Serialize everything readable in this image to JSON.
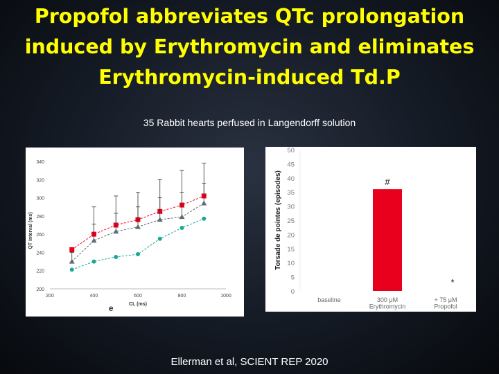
{
  "slide": {
    "title_lines": [
      "Propofol abbreviates QTc prolongation",
      "induced by Erythromycin and eliminates",
      "Erythromycin-induced Td.P"
    ],
    "subtitle": "35 Rabbit hearts perfused in Langendorff solution",
    "citation": "Ellerman et al, SCIENT REP 2020"
  },
  "chart_data": [
    {
      "type": "line",
      "xlabel": "CL (ms)",
      "ylabel": "QT interval (ms)",
      "xlim": [
        200,
        1000
      ],
      "ylim": [
        200,
        340
      ],
      "xticks": [
        200,
        400,
        600,
        800,
        1000
      ],
      "yticks": [
        200,
        220,
        240,
        260,
        280,
        300,
        320,
        340
      ],
      "panel_label": "e",
      "grid": false,
      "x": [
        300,
        400,
        500,
        600,
        700,
        800,
        900
      ],
      "series": [
        {
          "color": "#e8001c",
          "marker": "square",
          "values": [
            243,
            260,
            270,
            276,
            285,
            292,
            302
          ],
          "error_plus": [
            0,
            30,
            32,
            30,
            35,
            38,
            36
          ]
        },
        {
          "color": "#5f6b73",
          "marker": "triangle",
          "values": [
            230,
            253,
            263,
            268,
            276,
            279,
            294
          ],
          "error_plus": [
            10,
            18,
            20,
            22,
            24,
            27,
            22
          ]
        },
        {
          "color": "#18a896",
          "marker": "circle",
          "values": [
            221,
            230,
            235,
            238,
            255,
            267,
            277
          ],
          "error_plus": [
            0,
            0,
            0,
            0,
            0,
            0,
            0
          ]
        }
      ]
    },
    {
      "type": "bar",
      "ylabel": "Torsade de pointes (episodes)",
      "ylim": [
        0,
        50
      ],
      "yticks": [
        0,
        5,
        10,
        15,
        20,
        25,
        30,
        35,
        40,
        45,
        50
      ],
      "grid": false,
      "categories": [
        {
          "lines": [
            "baseline"
          ]
        },
        {
          "lines": [
            "300 μM",
            "Erythromycin"
          ]
        },
        {
          "lines": [
            "+ 75 μM",
            "Propofol"
          ]
        }
      ],
      "values": [
        0,
        36,
        0
      ],
      "bar_color": "#e8001c",
      "annotations": [
        {
          "category_index": 1,
          "text": "#"
        },
        {
          "category_index": 2,
          "text": "*"
        }
      ]
    }
  ]
}
